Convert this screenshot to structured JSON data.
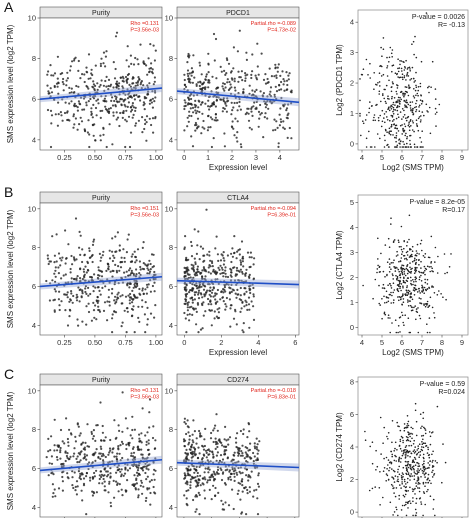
{
  "colors": {
    "point": "#222222",
    "fit_line": "#1f4fc7",
    "ci_band": "#9aa9d4",
    "stat_red": "#e0241b",
    "strip_bg": "#e6e6e6",
    "panel_border": "#555555"
  },
  "chart_data": [
    {
      "row": "A",
      "panel_label": "A",
      "ylabel": "SMS expression level (log2 TPM)",
      "ylim": [
        3.5,
        10
      ],
      "yticks": [
        "4",
        "6",
        "8",
        "10"
      ],
      "facets": [
        {
          "type": "scatter",
          "strip_title": "Purity",
          "xlabel": "",
          "xlim": [
            0.05,
            1.05
          ],
          "xticks": [
            "0.25",
            "0.50",
            "0.75",
            "1.00"
          ],
          "xtick_values": [
            0.25,
            0.5,
            0.75,
            1.0
          ],
          "stat": [
            "Rho =0.131",
            "P=3.56e-03"
          ],
          "fit": {
            "x": [
              0.05,
              1.05
            ],
            "y": [
              6.0,
              6.55
            ]
          },
          "points": {
            "n": 430,
            "x_range": [
              0.1,
              1.0
            ],
            "x_skew": 0.2,
            "y_mean": 6.3,
            "y_sd": 1.0
          }
        },
        {
          "type": "scatter",
          "strip_title": "PDCD1",
          "xlabel": "Expression level",
          "xlim": [
            -0.3,
            4.8
          ],
          "xticks": [
            "0",
            "1",
            "2",
            "3",
            "4"
          ],
          "xtick_values": [
            0,
            1,
            2,
            3,
            4
          ],
          "stat": [
            "Partial.rho =-0.089",
            "P=4.73e-02"
          ],
          "fit": {
            "x": [
              -0.3,
              4.8
            ],
            "y": [
              6.4,
              5.85
            ]
          },
          "points": {
            "n": 430,
            "x_range": [
              0,
              4.5
            ],
            "x_skew": -0.5,
            "y_mean": 6.2,
            "y_sd": 1.0
          }
        }
      ],
      "correlation": {
        "type": "scatter",
        "xlabel": "Log2 (SMS TPM)",
        "ylabel": "Log2 (PDCD1 TPM)",
        "xlim": [
          3.8,
          9.3
        ],
        "ylim": [
          -0.2,
          4.4
        ],
        "xticks": [
          "4",
          "5",
          "6",
          "7",
          "8",
          "9"
        ],
        "xtick_values": [
          4,
          5,
          6,
          7,
          8,
          9
        ],
        "yticks": [
          "0",
          "1",
          "2",
          "3",
          "4"
        ],
        "ytick_values": [
          0,
          1,
          2,
          3,
          4
        ],
        "stat": [
          "P-value = 0.0026",
          "R= -0.13"
        ],
        "points": {
          "n": 420,
          "x_mean": 5.9,
          "x_sd": 0.8,
          "y_mean": 1.2,
          "y_sd": 0.95
        }
      }
    },
    {
      "row": "B",
      "panel_label": "B",
      "ylabel": "SMS expression level (log2 TPM)",
      "ylim": [
        3.5,
        10.3
      ],
      "yticks": [
        "4",
        "6",
        "8",
        "10"
      ],
      "facets": [
        {
          "type": "scatter",
          "strip_title": "Purity",
          "xlabel": "",
          "xlim": [
            0.05,
            1.05
          ],
          "xticks": [
            "0.25",
            "0.50",
            "0.75",
            "1.00"
          ],
          "xtick_values": [
            0.25,
            0.5,
            0.75,
            1.0
          ],
          "stat": [
            "Rho =0.151",
            "P=3.56e-03"
          ],
          "fit": {
            "x": [
              0.05,
              1.05
            ],
            "y": [
              6.0,
              6.5
            ]
          },
          "points": {
            "n": 430,
            "x_range": [
              0.1,
              1.0
            ],
            "x_skew": 0.2,
            "y_mean": 6.3,
            "y_sd": 1.0
          }
        },
        {
          "type": "scatter",
          "strip_title": "CTLA4",
          "xlabel": "Expression level",
          "xlim": [
            -0.4,
            6.2
          ],
          "xticks": [
            "0",
            "2",
            "4",
            "6"
          ],
          "xtick_values": [
            0,
            2,
            4,
            6
          ],
          "stat": [
            "Partial.rho =-0.094",
            "P=6.39e-01"
          ],
          "fit": {
            "x": [
              -0.4,
              6.2
            ],
            "y": [
              6.3,
              6.1
            ]
          },
          "points": {
            "n": 430,
            "x_range": [
              0,
              3.8
            ],
            "x_skew": -0.3,
            "y_mean": 6.2,
            "y_sd": 1.0
          }
        }
      ],
      "correlation": {
        "type": "scatter",
        "xlabel": "Log2 (SMS TPM)",
        "ylabel": "Log2 (CTLA4 TPM)",
        "xlim": [
          3.8,
          9.3
        ],
        "ylim": [
          -0.3,
          5.3
        ],
        "xticks": [
          "4",
          "5",
          "6",
          "7",
          "8",
          "9"
        ],
        "xtick_values": [
          4,
          5,
          6,
          7,
          8,
          9
        ],
        "yticks": [
          "0",
          "1",
          "2",
          "3",
          "4",
          "5"
        ],
        "ytick_values": [
          0,
          1,
          2,
          3,
          4,
          5
        ],
        "stat": [
          "P-value = 8.2e-05",
          "R=0.17"
        ],
        "points": {
          "n": 420,
          "x_mean": 6.3,
          "x_sd": 0.75,
          "y_mean": 1.9,
          "y_sd": 0.9
        }
      }
    },
    {
      "row": "C",
      "panel_label": "C",
      "ylabel": "SMS expression level (log2 TPM)",
      "ylim": [
        3.5,
        10.3
      ],
      "yticks": [
        "4",
        "6",
        "8",
        "10"
      ],
      "facets": [
        {
          "type": "scatter",
          "strip_title": "Purity",
          "xlabel": "Purity",
          "xlim": [
            0.05,
            1.05
          ],
          "xticks": [
            "0.25",
            "0.50",
            "0.75",
            "1.00"
          ],
          "xtick_values": [
            0.25,
            0.5,
            0.75,
            1.0
          ],
          "stat": [
            "Rho =0.131",
            "P=3.56e-03"
          ],
          "fit": {
            "x": [
              0.05,
              1.05
            ],
            "y": [
              5.9,
              6.45
            ]
          },
          "points": {
            "n": 430,
            "x_range": [
              0.1,
              1.0
            ],
            "x_skew": 0.2,
            "y_mean": 6.3,
            "y_sd": 1.0
          }
        },
        {
          "type": "scatter",
          "strip_title": "CD274",
          "xlabel": "Expression level",
          "xlim": [
            -0.5,
            8.3
          ],
          "xticks": [
            "0",
            "2",
            "4",
            "6",
            "8"
          ],
          "xtick_values": [
            0,
            2,
            4,
            6,
            8
          ],
          "stat": [
            "Partial.rho =-0.018",
            "P=6.83e-01"
          ],
          "fit": {
            "x": [
              -0.5,
              8.3
            ],
            "y": [
              6.3,
              6.05
            ]
          },
          "points": {
            "n": 430,
            "x_range": [
              0,
              5.5
            ],
            "x_skew": -0.4,
            "y_mean": 6.2,
            "y_sd": 1.0
          }
        }
      ],
      "correlation": {
        "type": "scatter",
        "xlabel": "Log2 (SMS TPM)",
        "ylabel": "Log2 (CD274 TPM)",
        "xlim": [
          3.8,
          9.3
        ],
        "ylim": [
          -0.3,
          8.3
        ],
        "xticks": [
          "4",
          "5",
          "6",
          "7",
          "8",
          "9"
        ],
        "xtick_values": [
          4,
          5,
          6,
          7,
          8,
          9
        ],
        "yticks": [
          "0",
          "2",
          "4",
          "6",
          "8"
        ],
        "ytick_values": [
          0,
          2,
          4,
          6,
          8
        ],
        "stat": [
          "P-value = 0.59",
          "R=0.024"
        ],
        "points": {
          "n": 420,
          "x_mean": 6.4,
          "x_sd": 0.75,
          "y_mean": 2.8,
          "y_sd": 1.3
        }
      }
    }
  ]
}
